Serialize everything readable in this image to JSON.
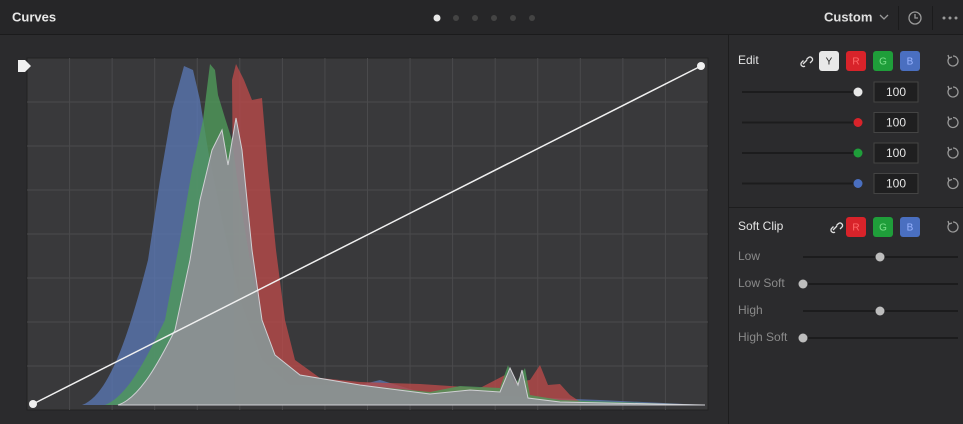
{
  "header": {
    "title": "Curves",
    "preset": "Custom"
  },
  "edit": {
    "label": "Edit",
    "channels": [
      "Y",
      "R",
      "G",
      "B"
    ],
    "values": [
      "100",
      "100",
      "100",
      "100"
    ]
  },
  "soft_clip": {
    "label": "Soft Clip",
    "channels": [
      "R",
      "G",
      "B"
    ],
    "sliders": [
      "Low",
      "Low Soft",
      "High",
      "High Soft"
    ]
  }
}
